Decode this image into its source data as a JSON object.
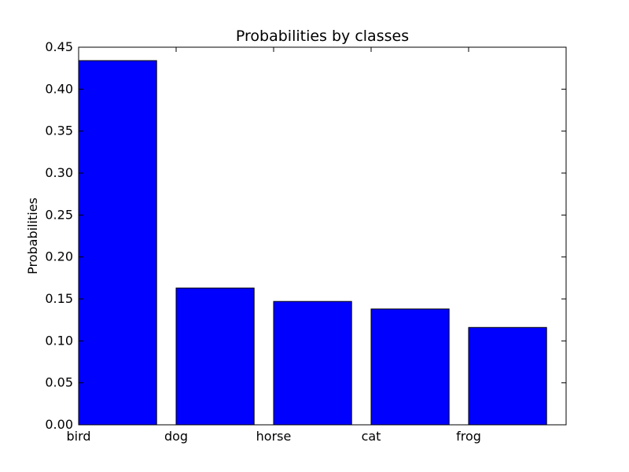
{
  "chart_data": {
    "type": "bar",
    "title": "Probabilities by classes",
    "xlabel": "",
    "ylabel": "Probabilities",
    "categories": [
      "bird",
      "dog",
      "horse",
      "cat",
      "frog"
    ],
    "values": [
      0.434,
      0.163,
      0.147,
      0.138,
      0.116
    ],
    "ylim": [
      0,
      0.45
    ],
    "yticks": [
      "0.00",
      "0.05",
      "0.10",
      "0.15",
      "0.20",
      "0.25",
      "0.30",
      "0.35",
      "0.40",
      "0.45"
    ],
    "bar_color": "#0000ff",
    "edge_color": "#000000",
    "grid": false,
    "legend": "none"
  }
}
